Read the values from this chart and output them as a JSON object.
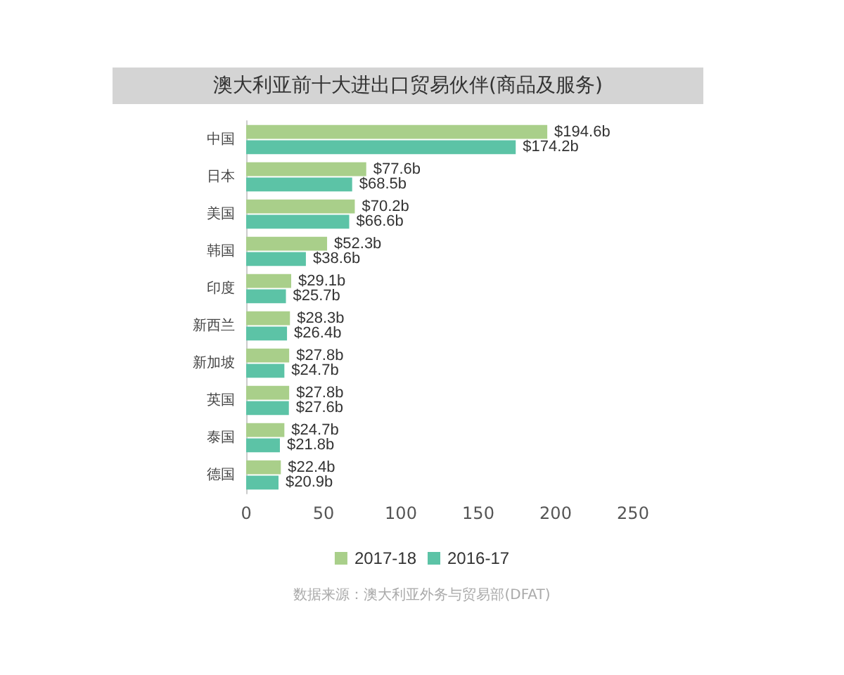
{
  "chart_data": {
    "type": "bar",
    "orientation": "horizontal",
    "title": "澳大利亚前十大进出口贸易伙伴(商品及服务)",
    "categories": [
      "中国",
      "日本",
      "美国",
      "韩国",
      "印度",
      "新西兰",
      "新加坡",
      "英国",
      "泰国",
      "德国"
    ],
    "series": [
      {
        "name": "2017-18",
        "color": "#a9cf8a",
        "values": [
          194.6,
          77.6,
          70.2,
          52.3,
          29.1,
          28.3,
          27.8,
          27.8,
          24.7,
          22.4
        ],
        "value_labels": [
          "$194.6b",
          "$77.6b",
          "$70.2b",
          "$52.3b",
          "$29.1b",
          "$28.3b",
          "$27.8b",
          "$27.8b",
          "$24.7b",
          "$22.4b"
        ]
      },
      {
        "name": "2016-17",
        "color": "#5cc3a6",
        "values": [
          174.2,
          68.5,
          66.6,
          38.6,
          25.7,
          26.4,
          24.7,
          27.6,
          21.8,
          20.9
        ],
        "value_labels": [
          "$174.2b",
          "$68.5b",
          "$66.6b",
          "$38.6b",
          "$25.7b",
          "$26.4b",
          "$24.7b",
          "$27.6b",
          "$21.8b",
          "$20.9b"
        ]
      }
    ],
    "xlim": [
      0,
      250
    ],
    "xticks": [
      0,
      50,
      100,
      150,
      200,
      250
    ],
    "grid": false,
    "legend": "bottom",
    "annotations": [
      "数据来源：澳大利亚外务与贸易部(DFAT)"
    ]
  }
}
